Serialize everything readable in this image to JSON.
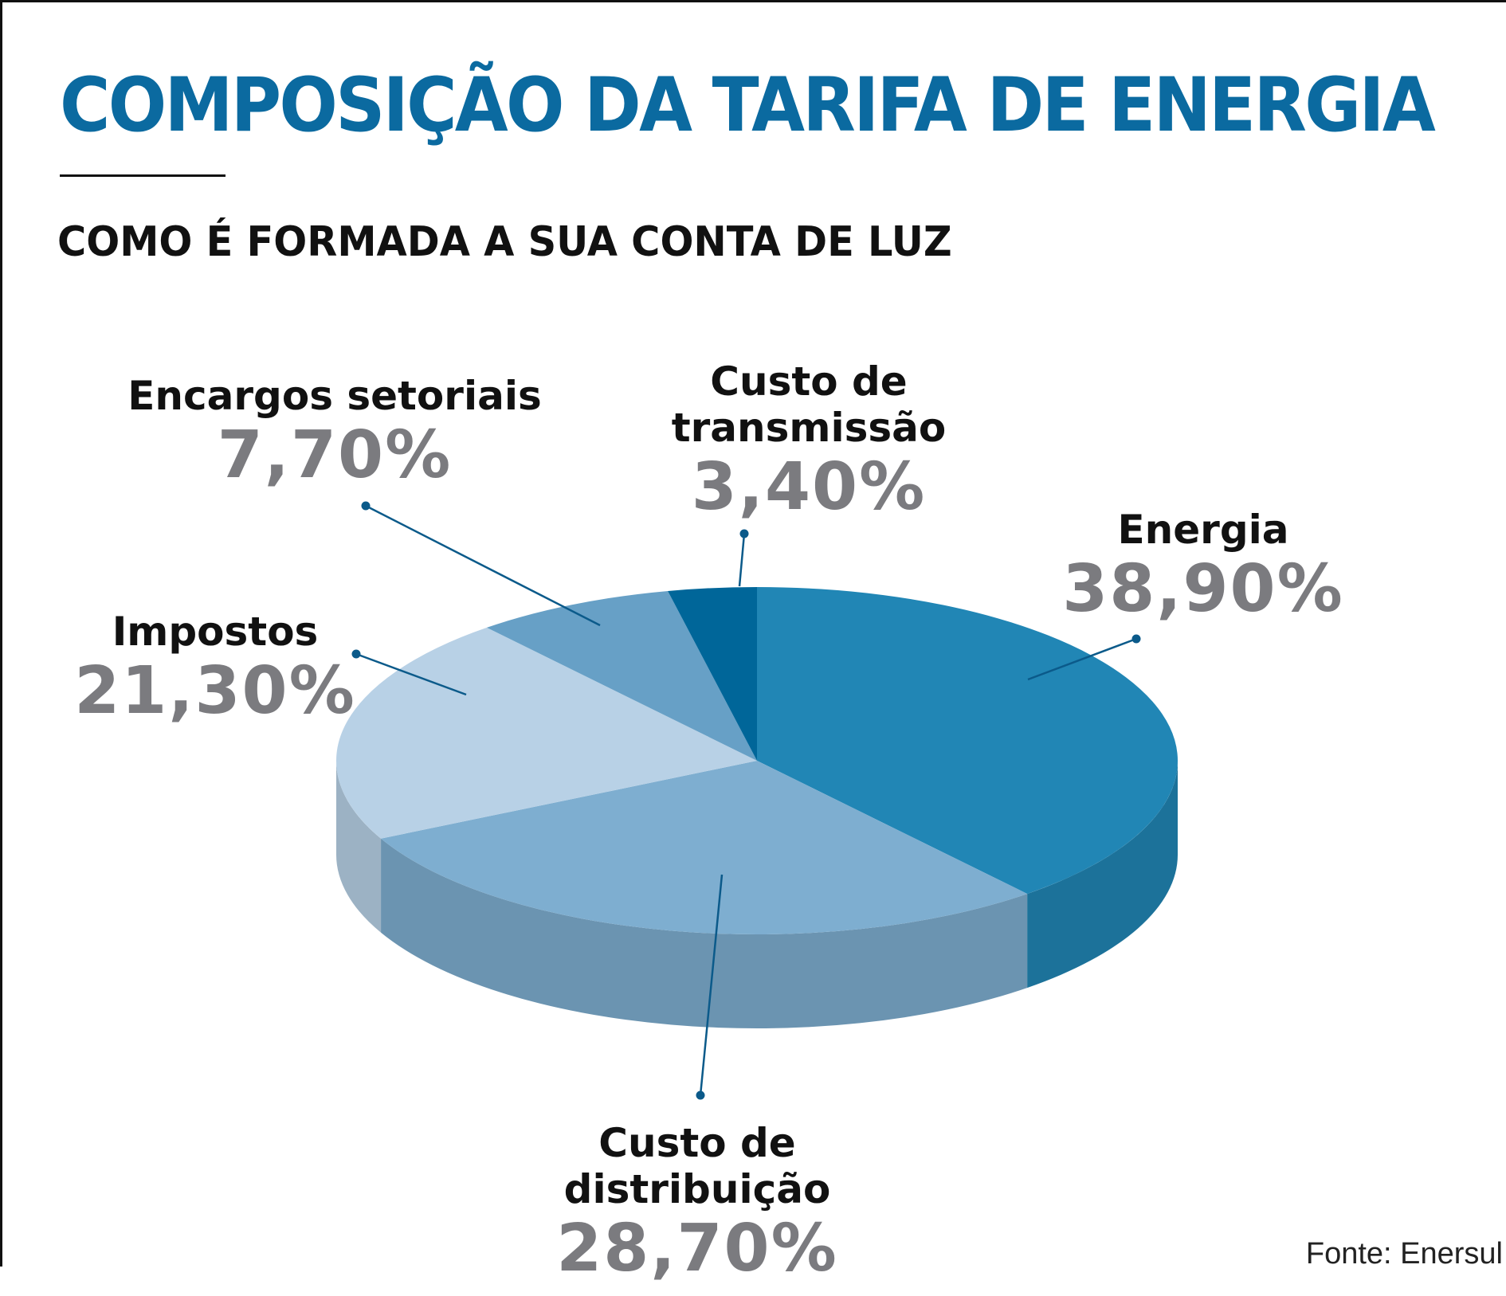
{
  "title": "COMPOSIÇÃO DA TARIFA DE ENERGIA",
  "subtitle": "COMO É FORMADA A SUA CONTA DE LUZ",
  "source": "Fonte: Enersul",
  "colors": {
    "title": "#0b6aa0",
    "energia": "#2186b5",
    "distribuicao": "#7eaed0",
    "impostos": "#b8d1e6",
    "encargos": "#67a0c6",
    "transmissao": "#006699",
    "leader": "#0b5a8a",
    "percent": "#7b7b7f"
  },
  "labels": {
    "energia": {
      "name": "Energia",
      "pct": "38,90%"
    },
    "distribuicao": {
      "name_line1": "Custo de",
      "name_line2": "distribuição",
      "pct": "28,70%"
    },
    "impostos": {
      "name": "Impostos",
      "pct": "21,30%"
    },
    "encargos": {
      "name": "Encargos setoriais",
      "pct": "7,70%"
    },
    "transmissao": {
      "name_line1": "Custo de",
      "name_line2": "transmissão",
      "pct": "3,40%"
    }
  },
  "chart_data": {
    "type": "pie",
    "style": "3d",
    "title": "COMPOSIÇÃO DA TARIFA DE ENERGIA",
    "subtitle": "COMO É FORMADA A SUA CONTA DE LUZ",
    "categories": [
      "Energia",
      "Custo de distribuição",
      "Impostos",
      "Encargos setoriais",
      "Custo de transmissão"
    ],
    "values": [
      38.9,
      28.7,
      21.3,
      7.7,
      3.4
    ],
    "unit": "%",
    "colors": [
      "#2186b5",
      "#7eaed0",
      "#b8d1e6",
      "#67a0c6",
      "#006699"
    ]
  }
}
